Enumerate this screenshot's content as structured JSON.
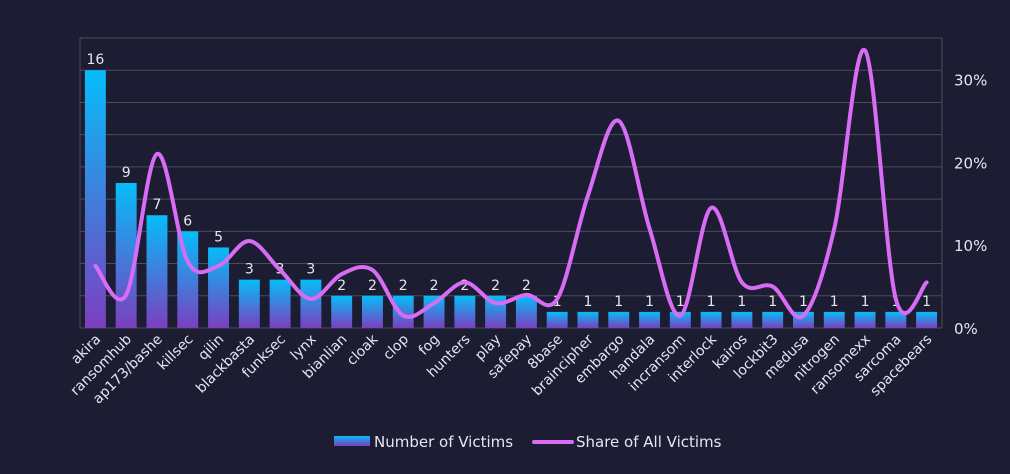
{
  "chart_data": {
    "type": "bar",
    "categories": [
      "akira",
      "ransomhub",
      "ap173/bashe",
      "killsec",
      "qilin",
      "blackbasta",
      "funksec",
      "lynx",
      "bianlian",
      "cloak",
      "clop",
      "fog",
      "hunters",
      "play",
      "safepay",
      "8base",
      "braincipher",
      "embargo",
      "handala",
      "incransom",
      "interlock",
      "kairos",
      "lockbit3",
      "medusa",
      "nitrogen",
      "ransomexx",
      "sarcoma",
      "spacebears"
    ],
    "series": [
      {
        "name": "Number of Victims",
        "type": "bar",
        "axis": "left",
        "values": [
          16,
          9,
          7,
          6,
          5,
          3,
          3,
          3,
          2,
          2,
          2,
          2,
          2,
          2,
          2,
          1,
          1,
          1,
          1,
          1,
          1,
          1,
          1,
          1,
          1,
          1,
          1,
          1
        ]
      },
      {
        "name": "Share of All Victims",
        "type": "line",
        "axis": "right",
        "values": [
          7.5,
          4.0,
          21.0,
          8.0,
          7.5,
          10.5,
          7.0,
          3.5,
          6.5,
          7.0,
          1.5,
          3.0,
          5.5,
          3.0,
          4.0,
          3.5,
          16.0,
          25.0,
          12.0,
          1.5,
          14.5,
          5.5,
          5.0,
          1.5,
          12.0,
          33.5,
          3.5,
          5.5
        ]
      }
    ],
    "y_left_lim": [
      0,
      18
    ],
    "y_right_lim": [
      0,
      35
    ],
    "y_right_ticks": [
      "0%",
      "10%",
      "20%",
      "30%"
    ],
    "y_right_tick_values": [
      0,
      10,
      20,
      30
    ],
    "colors": {
      "background": "#1c1d33",
      "bar_top": "#06bdf9",
      "bar_bottom": "#7b3fbf",
      "line": "#d86cf5",
      "grid": "#4a4b5e",
      "text": "#e6e6ee"
    },
    "legend_position": "bottom-center",
    "grid": true
  }
}
